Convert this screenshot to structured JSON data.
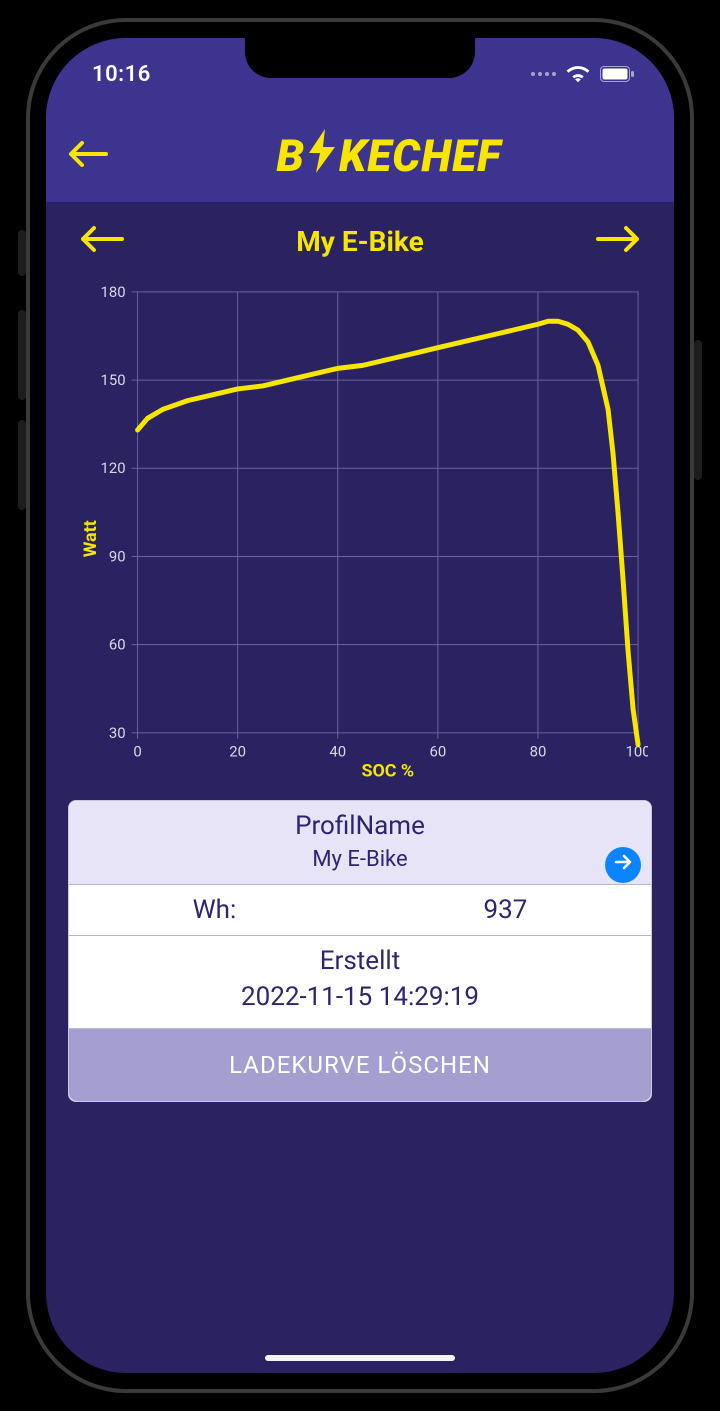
{
  "statusbar": {
    "time": "10:16"
  },
  "brand": {
    "prefix": "B",
    "suffix": "KECHEF"
  },
  "subnav": {
    "title": "My E-Bike"
  },
  "colors": {
    "accent": "#f7e600",
    "header_bg": "#3d3490",
    "screen_bg": "#2a2261",
    "grid": "#6a63a0",
    "axis_text": "#d8d8e6",
    "card_head_bg": "#e6e4f6",
    "card_text": "#2d2570",
    "delete_bg": "#a49ed1",
    "go_btn": "#0a84ff"
  },
  "chart": {
    "type": "line",
    "xlabel": "SOC %",
    "ylabel": "Watt",
    "xlim": [
      0,
      100
    ],
    "ylim": [
      30,
      180
    ],
    "xtick_step": 20,
    "ytick_step": 30,
    "xticks": [
      0,
      20,
      40,
      60,
      80,
      100
    ],
    "yticks": [
      30,
      60,
      90,
      120,
      150,
      180
    ],
    "line_color": "#f7e600",
    "line_width": 5,
    "grid_color": "#6a63a0",
    "background_color": "#2a2261",
    "axis_label_color": "#f7e600",
    "tick_label_color": "#d8d8e6",
    "tick_fontsize": 15,
    "label_fontsize": 18,
    "label_fontweight": "700",
    "points": [
      [
        0,
        133
      ],
      [
        2,
        137
      ],
      [
        5,
        140
      ],
      [
        10,
        143
      ],
      [
        15,
        145
      ],
      [
        20,
        147
      ],
      [
        25,
        148
      ],
      [
        30,
        150
      ],
      [
        35,
        152
      ],
      [
        40,
        154
      ],
      [
        45,
        155
      ],
      [
        50,
        157
      ],
      [
        55,
        159
      ],
      [
        60,
        161
      ],
      [
        65,
        163
      ],
      [
        70,
        165
      ],
      [
        75,
        167
      ],
      [
        80,
        169
      ],
      [
        82,
        170
      ],
      [
        84,
        170
      ],
      [
        86,
        169
      ],
      [
        88,
        167
      ],
      [
        90,
        163
      ],
      [
        92,
        155
      ],
      [
        94,
        140
      ],
      [
        95,
        125
      ],
      [
        96,
        105
      ],
      [
        97,
        82
      ],
      [
        98,
        58
      ],
      [
        99,
        38
      ],
      [
        100,
        26
      ]
    ]
  },
  "card": {
    "profile_label": "ProfilName",
    "profile_value": "My E-Bike",
    "wh_label": "Wh:",
    "wh_value": "937",
    "created_label": "Erstellt",
    "created_value": "2022-11-15 14:29:19",
    "delete_label": "LADEKURVE LÖSCHEN"
  }
}
